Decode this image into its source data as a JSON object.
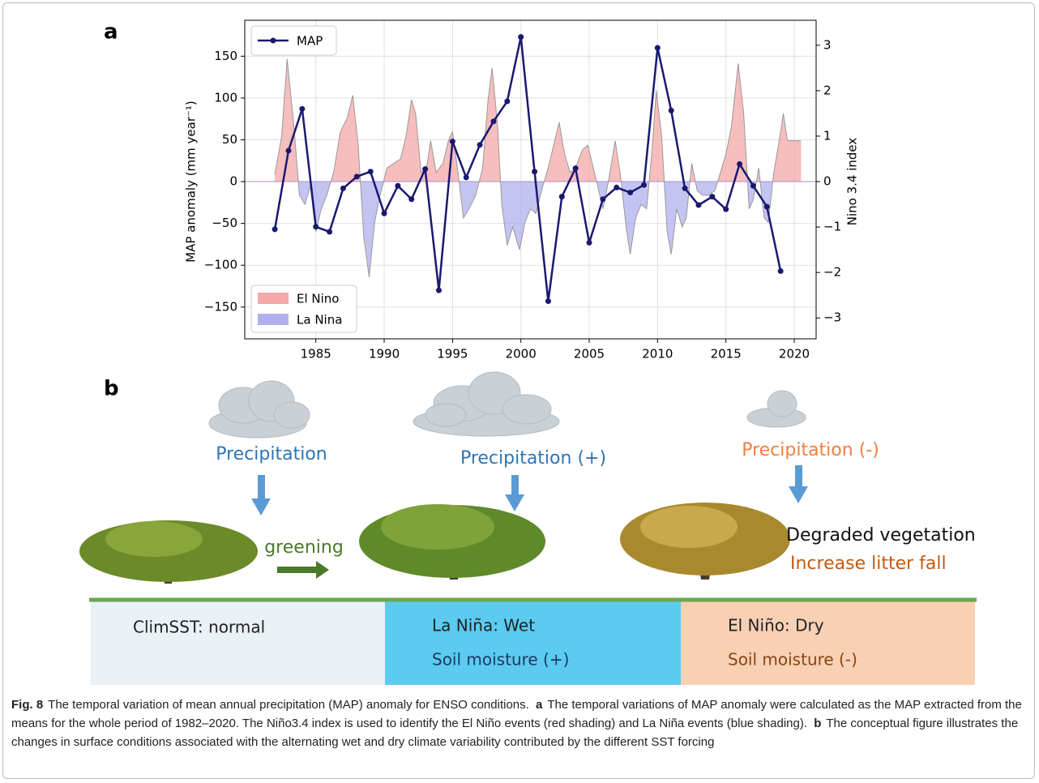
{
  "chart_data": {
    "type": "line",
    "panel_label": "a",
    "y_label": "MAP anomaly (mm year⁻¹)",
    "y2_label": "Nino 3.4 index",
    "xlim": [
      1979.8,
      2021.6
    ],
    "xticks": [
      1985,
      1990,
      1995,
      2000,
      2005,
      2010,
      2015,
      2020
    ],
    "ylim": [
      -188,
      193
    ],
    "yticks": [
      {
        "value": -150,
        "label": "−150"
      },
      {
        "value": -100,
        "label": "−100"
      },
      {
        "value": -50,
        "label": "−50"
      },
      0,
      50,
      100,
      150
    ],
    "y2lim": [
      -3.46,
      3.55
    ],
    "y2ticks": [
      {
        "value": -3,
        "label": "−3"
      },
      {
        "value": -2,
        "label": "−2"
      },
      {
        "value": -1,
        "label": "−1"
      },
      0,
      1,
      2,
      3
    ],
    "grid": true,
    "series": [
      {
        "name": "MAP",
        "color": "#191970",
        "x": [
          1982,
          1983,
          1984,
          1985,
          1986,
          1987,
          1988,
          1989,
          1990,
          1991,
          1992,
          1993,
          1994,
          1995,
          1996,
          1997,
          1998,
          1999,
          2000,
          2001,
          2002,
          2003,
          2004,
          2005,
          2006,
          2007,
          2008,
          2009,
          2010,
          2011,
          2012,
          2013,
          2014,
          2015,
          2016,
          2017,
          2018,
          2019
        ],
        "values": [
          -57,
          37,
          87,
          -54,
          -60,
          -8,
          6,
          12,
          -38,
          -5,
          -21,
          15,
          -130,
          48,
          5,
          44,
          72,
          96,
          173,
          12,
          -143,
          -18,
          16,
          -73,
          -21,
          -7,
          -13,
          -4,
          160,
          85,
          -8,
          -28,
          -18,
          -33,
          21,
          -5,
          -30,
          -107
        ]
      }
    ],
    "nino34": {
      "axis": "y2",
      "x": [
        1982.0,
        1982.5,
        1982.9,
        1983.4,
        1983.8,
        1984.2,
        1984.6,
        1985.0,
        1985.4,
        1985.8,
        1986.3,
        1986.8,
        1987.3,
        1987.7,
        1988.1,
        1988.5,
        1988.9,
        1989.3,
        1989.7,
        1990.2,
        1990.7,
        1991.2,
        1991.6,
        1992.0,
        1992.3,
        1992.7,
        1993.1,
        1993.4,
        1993.8,
        1994.3,
        1994.7,
        1995.0,
        1995.4,
        1995.8,
        1996.2,
        1996.7,
        1997.2,
        1997.6,
        1997.9,
        1998.3,
        1998.6,
        1999.0,
        1999.4,
        1999.9,
        2000.3,
        2000.7,
        2001.1,
        2001.6,
        2002.0,
        2002.4,
        2002.8,
        2003.2,
        2003.6,
        2004.0,
        2004.5,
        2004.9,
        2005.3,
        2005.7,
        2006.0,
        2006.4,
        2006.9,
        2007.3,
        2007.7,
        2008.0,
        2008.4,
        2008.8,
        2009.2,
        2009.6,
        2009.9,
        2010.3,
        2010.7,
        2011.0,
        2011.4,
        2011.8,
        2012.1,
        2012.5,
        2012.9,
        2013.3,
        2013.7,
        2014.2,
        2014.6,
        2015.0,
        2015.4,
        2015.9,
        2016.3,
        2016.7,
        2017.0,
        2017.4,
        2017.8,
        2018.1,
        2018.5,
        2018.9,
        2019.2,
        2019.5,
        2019.9,
        2020.5
      ],
      "values": [
        0.15,
        1.0,
        2.7,
        1.2,
        -0.3,
        -0.5,
        -0.1,
        -1.1,
        -0.6,
        -0.3,
        0.2,
        1.1,
        1.4,
        1.9,
        0.8,
        -1.2,
        -2.1,
        -0.9,
        -0.3,
        0.3,
        0.4,
        0.5,
        1.0,
        1.8,
        1.5,
        0.2,
        0.3,
        0.9,
        0.2,
        0.4,
        0.9,
        1.1,
        0.2,
        -0.8,
        -0.6,
        -0.3,
        0.3,
        1.8,
        2.5,
        1.2,
        -0.5,
        -1.4,
        -1.0,
        -1.5,
        -0.9,
        -0.6,
        -0.7,
        -0.1,
        0.3,
        0.8,
        1.3,
        0.6,
        0.2,
        0.3,
        0.7,
        0.8,
        0.3,
        -0.2,
        -0.6,
        0.0,
        0.9,
        0.1,
        -1.0,
        -1.6,
        -0.8,
        -0.5,
        -0.6,
        0.7,
        2.0,
        1.0,
        -1.1,
        -1.6,
        -0.6,
        -1.0,
        -0.8,
        0.4,
        -0.2,
        -0.3,
        -0.3,
        -0.2,
        0.2,
        0.6,
        1.2,
        2.6,
        1.5,
        -0.6,
        -0.4,
        0.3,
        -0.8,
        -0.9,
        0.2,
        0.9,
        1.5,
        0.9,
        0.9,
        0.9
      ]
    },
    "shading_legend": [
      {
        "name": "El Nino",
        "color": "#f4a8a8"
      },
      {
        "name": "La Nina",
        "color": "#b0b0ee"
      }
    ]
  },
  "diagram": {
    "panel_label": "b",
    "precipitation": [
      "Precipitation",
      "Precipitation (+)",
      "Precipitation (-)"
    ],
    "greening": "greening",
    "degraded": "Degraded vegetation",
    "litter": "Increase litter fall",
    "zones": [
      {
        "title": "ClimSST: normal"
      },
      {
        "title": "La Niña: Wet",
        "moisture": "Soil moisture (+)"
      },
      {
        "title": "El Niño: Dry",
        "moisture": "Soil moisture (-)"
      }
    ]
  },
  "caption": {
    "label": "Fig. 8",
    "title": "The temporal variation of mean annual precipitation (MAP) anomaly for ENSO conditions.",
    "parts": [
      {
        "label": "a",
        "text": "The temporal variations of MAP anomaly were calculated as the MAP extracted from the means for the whole period of 1982–2020. The Niño3.4 index is used to identify the El Niño events (red shading) and La Niña events (blue shading)."
      },
      {
        "label": "b",
        "text": "The conceptual figure illustrates the changes in surface conditions associated with the alternating wet and dry climate variability contributed by the different SST forcing"
      }
    ]
  }
}
